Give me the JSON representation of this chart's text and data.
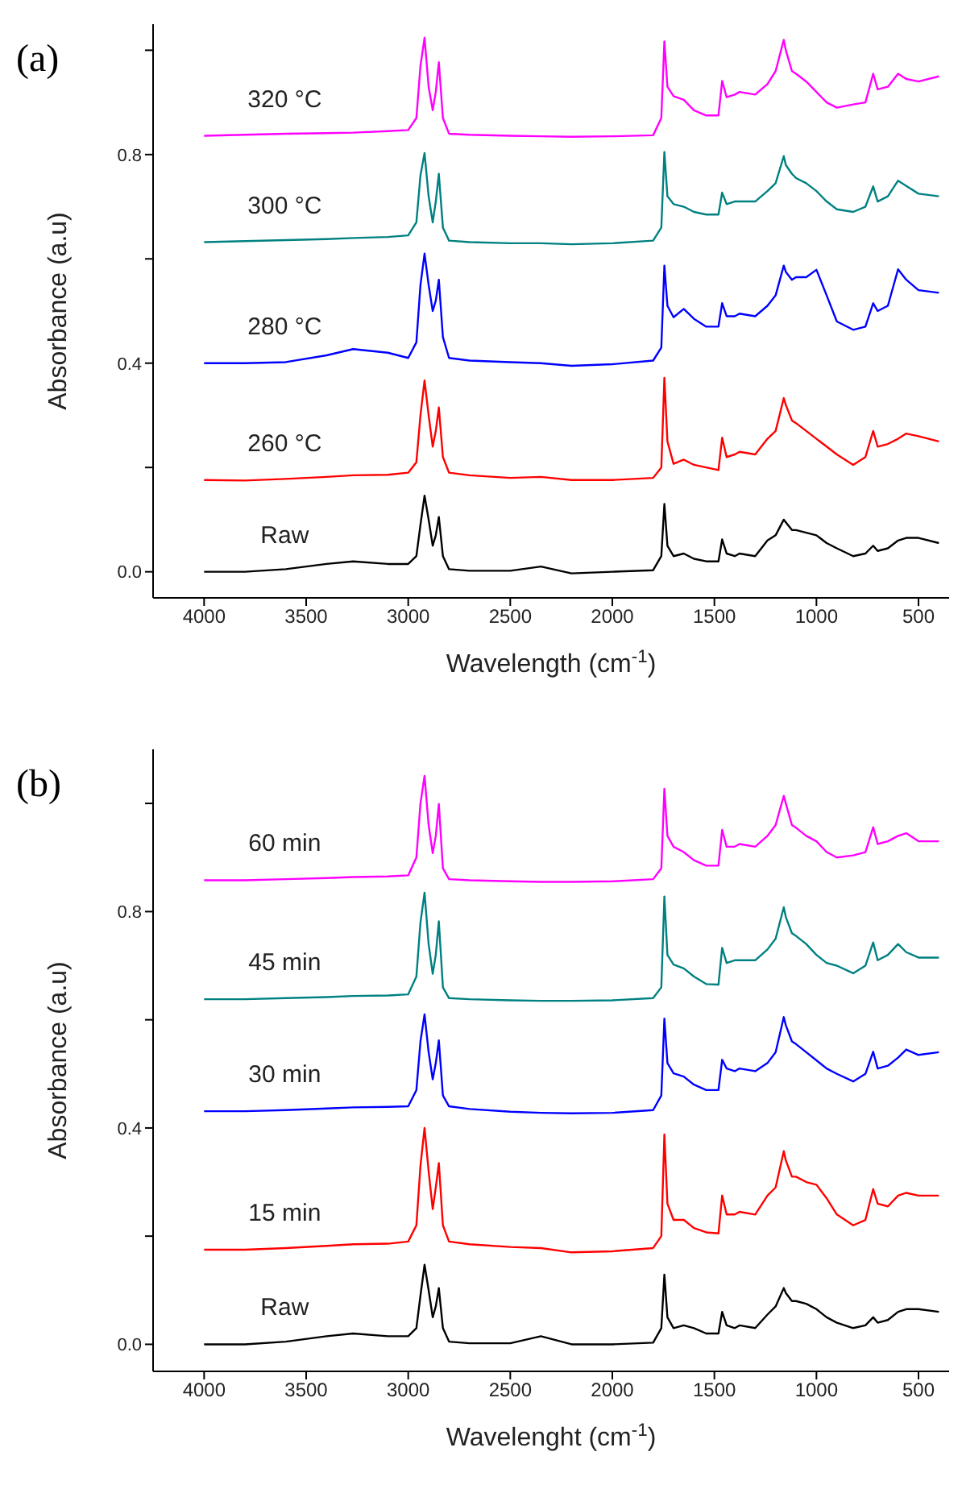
{
  "chart_data": [
    {
      "type": "line",
      "annotations": [
        "(a)"
      ],
      "xlabel": "Wavelength (cm$^{-1}$)",
      "ylabel": "Absorbance (a.u)",
      "marker": "none",
      "line_style": "solid",
      "xlim": [
        4250,
        350
      ],
      "xticks": [
        4000,
        3500,
        3000,
        2500,
        2000,
        1500,
        1000,
        500
      ],
      "ylim": [
        -0.05,
        1.05
      ],
      "yticks": [
        {
          "value": 0,
          "label": "0.0"
        },
        {
          "value": 0.2,
          "label": null
        },
        {
          "value": 0.4,
          "label": "0.4"
        },
        {
          "value": 0.6,
          "label": null
        },
        {
          "value": 0.8,
          "label": "0.8"
        },
        {
          "value": 1.0,
          "label": null
        }
      ],
      "x": [
        4000,
        3800,
        3600,
        3400,
        3270,
        3100,
        3000,
        2960,
        2940,
        2920,
        2900,
        2880,
        2865,
        2850,
        2830,
        2800,
        2700,
        2500,
        2350,
        2200,
        2000,
        1800,
        1760,
        1745,
        1730,
        1700,
        1650,
        1600,
        1540,
        1480,
        1462,
        1440,
        1400,
        1377,
        1300,
        1240,
        1200,
        1160,
        1150,
        1120,
        1100,
        1050,
        1000,
        950,
        900,
        820,
        760,
        722,
        700,
        650,
        600,
        560,
        500,
        400
      ],
      "series": [
        {
          "name": "Raw",
          "color": "#000000",
          "values": [
            0,
            0,
            0.005,
            0.015,
            0.02,
            0.015,
            0.015,
            0.03,
            0.09,
            0.146,
            0.1,
            0.05,
            0.07,
            0.105,
            0.03,
            0.005,
            0.002,
            0.002,
            0.01,
            -0.003,
            0,
            0.003,
            0.03,
            0.13,
            0.05,
            0.03,
            0.035,
            0.025,
            0.02,
            0.02,
            0.062,
            0.035,
            0.03,
            0.035,
            0.03,
            0.06,
            0.07,
            0.1,
            0.095,
            0.08,
            0.08,
            0.075,
            0.07,
            0.055,
            0.045,
            0.03,
            0.035,
            0.05,
            0.04,
            0.045,
            0.06,
            0.065,
            0.065,
            0.055
          ]
        },
        {
          "name": "260 °C",
          "color": "#ff0000",
          "values": [
            0.176,
            0.175,
            0.178,
            0.182,
            0.185,
            0.186,
            0.19,
            0.21,
            0.3,
            0.367,
            0.3,
            0.24,
            0.27,
            0.315,
            0.22,
            0.19,
            0.185,
            0.18,
            0.182,
            0.176,
            0.176,
            0.18,
            0.2,
            0.372,
            0.25,
            0.207,
            0.215,
            0.205,
            0.2,
            0.195,
            0.257,
            0.22,
            0.225,
            0.23,
            0.225,
            0.255,
            0.27,
            0.333,
            0.32,
            0.29,
            0.285,
            0.27,
            0.255,
            0.24,
            0.225,
            0.205,
            0.22,
            0.27,
            0.24,
            0.245,
            0.255,
            0.265,
            0.26,
            0.25
          ]
        },
        {
          "name": "280 °C",
          "color": "#0000ff",
          "values": [
            0.4,
            0.4,
            0.402,
            0.415,
            0.427,
            0.42,
            0.41,
            0.44,
            0.55,
            0.61,
            0.55,
            0.5,
            0.52,
            0.56,
            0.45,
            0.41,
            0.405,
            0.402,
            0.4,
            0.395,
            0.398,
            0.405,
            0.43,
            0.587,
            0.51,
            0.488,
            0.504,
            0.485,
            0.47,
            0.47,
            0.515,
            0.49,
            0.49,
            0.495,
            0.49,
            0.51,
            0.53,
            0.587,
            0.575,
            0.56,
            0.565,
            0.565,
            0.579,
            0.53,
            0.48,
            0.464,
            0.47,
            0.515,
            0.5,
            0.51,
            0.58,
            0.56,
            0.54,
            0.535
          ]
        },
        {
          "name": "300 °C",
          "color": "#008080",
          "values": [
            0.632,
            0.634,
            0.636,
            0.638,
            0.64,
            0.642,
            0.645,
            0.67,
            0.76,
            0.803,
            0.72,
            0.67,
            0.71,
            0.763,
            0.66,
            0.635,
            0.632,
            0.63,
            0.63,
            0.628,
            0.63,
            0.635,
            0.66,
            0.805,
            0.72,
            0.705,
            0.7,
            0.69,
            0.685,
            0.685,
            0.727,
            0.705,
            0.71,
            0.71,
            0.71,
            0.73,
            0.745,
            0.797,
            0.78,
            0.763,
            0.755,
            0.745,
            0.73,
            0.71,
            0.695,
            0.69,
            0.7,
            0.739,
            0.71,
            0.72,
            0.75,
            0.74,
            0.725,
            0.72
          ]
        },
        {
          "name": "320 °C",
          "color": "#ff00ff",
          "values": [
            0.836,
            0.838,
            0.84,
            0.841,
            0.842,
            0.845,
            0.847,
            0.87,
            0.97,
            1.024,
            0.93,
            0.885,
            0.92,
            0.977,
            0.87,
            0.84,
            0.838,
            0.836,
            0.835,
            0.834,
            0.835,
            0.837,
            0.87,
            1.017,
            0.93,
            0.912,
            0.905,
            0.885,
            0.875,
            0.875,
            0.941,
            0.91,
            0.915,
            0.92,
            0.915,
            0.935,
            0.96,
            1.02,
            1.0,
            0.96,
            0.955,
            0.94,
            0.92,
            0.9,
            0.89,
            0.896,
            0.9,
            0.955,
            0.925,
            0.93,
            0.955,
            0.945,
            0.94,
            0.95
          ]
        }
      ]
    },
    {
      "type": "line",
      "annotations": [
        "(b)"
      ],
      "xlabel": "Wavelenght (cm$^{-1}$)",
      "ylabel": "Absorbance (a.u)",
      "marker": "none",
      "line_style": "solid",
      "xlim": [
        4250,
        350
      ],
      "xticks": [
        4000,
        3500,
        3000,
        2500,
        2000,
        1500,
        1000,
        500
      ],
      "ylim": [
        -0.05,
        1.1
      ],
      "yticks": [
        {
          "value": 0,
          "label": "0.0"
        },
        {
          "value": 0.2,
          "label": null
        },
        {
          "value": 0.4,
          "label": "0.4"
        },
        {
          "value": 0.6,
          "label": null
        },
        {
          "value": 0.8,
          "label": "0.8"
        },
        {
          "value": 1.0,
          "label": null
        }
      ],
      "x": [
        4000,
        3800,
        3600,
        3400,
        3270,
        3100,
        3000,
        2960,
        2940,
        2920,
        2900,
        2880,
        2865,
        2850,
        2830,
        2800,
        2700,
        2500,
        2350,
        2200,
        2000,
        1800,
        1760,
        1745,
        1730,
        1700,
        1650,
        1600,
        1540,
        1480,
        1462,
        1440,
        1400,
        1377,
        1300,
        1240,
        1200,
        1160,
        1150,
        1120,
        1100,
        1050,
        1000,
        950,
        900,
        820,
        760,
        722,
        700,
        650,
        600,
        560,
        500,
        400
      ],
      "series": [
        {
          "name": "Raw",
          "color": "#000000",
          "values": [
            0,
            0,
            0.005,
            0.015,
            0.02,
            0.015,
            0.015,
            0.03,
            0.09,
            0.147,
            0.1,
            0.05,
            0.07,
            0.104,
            0.03,
            0.005,
            0.002,
            0.002,
            0.015,
            0,
            0,
            0.003,
            0.03,
            0.129,
            0.05,
            0.03,
            0.035,
            0.03,
            0.02,
            0.02,
            0.06,
            0.035,
            0.03,
            0.035,
            0.03,
            0.055,
            0.07,
            0.104,
            0.095,
            0.08,
            0.08,
            0.075,
            0.065,
            0.05,
            0.04,
            0.03,
            0.035,
            0.05,
            0.04,
            0.045,
            0.06,
            0.065,
            0.065,
            0.06
          ]
        },
        {
          "name": "15 min",
          "color": "#ff0000",
          "values": [
            0.175,
            0.175,
            0.178,
            0.182,
            0.185,
            0.186,
            0.19,
            0.22,
            0.33,
            0.4,
            0.32,
            0.25,
            0.29,
            0.335,
            0.22,
            0.19,
            0.185,
            0.18,
            0.178,
            0.17,
            0.172,
            0.178,
            0.2,
            0.388,
            0.26,
            0.23,
            0.23,
            0.215,
            0.207,
            0.205,
            0.275,
            0.24,
            0.24,
            0.245,
            0.24,
            0.275,
            0.29,
            0.357,
            0.34,
            0.31,
            0.31,
            0.3,
            0.295,
            0.27,
            0.24,
            0.22,
            0.23,
            0.287,
            0.26,
            0.255,
            0.275,
            0.28,
            0.275,
            0.275
          ]
        },
        {
          "name": "30 min",
          "color": "#0000ff",
          "values": [
            0.431,
            0.431,
            0.433,
            0.436,
            0.438,
            0.439,
            0.44,
            0.47,
            0.56,
            0.61,
            0.54,
            0.49,
            0.52,
            0.562,
            0.46,
            0.44,
            0.435,
            0.43,
            0.428,
            0.427,
            0.428,
            0.433,
            0.46,
            0.602,
            0.52,
            0.501,
            0.495,
            0.48,
            0.47,
            0.47,
            0.526,
            0.51,
            0.505,
            0.51,
            0.505,
            0.52,
            0.54,
            0.605,
            0.59,
            0.56,
            0.555,
            0.54,
            0.525,
            0.51,
            0.5,
            0.486,
            0.5,
            0.541,
            0.51,
            0.515,
            0.53,
            0.545,
            0.535,
            0.54
          ]
        },
        {
          "name": "45 min",
          "color": "#008080",
          "values": [
            0.638,
            0.638,
            0.64,
            0.642,
            0.644,
            0.645,
            0.647,
            0.68,
            0.78,
            0.835,
            0.74,
            0.685,
            0.72,
            0.782,
            0.66,
            0.64,
            0.638,
            0.636,
            0.635,
            0.635,
            0.636,
            0.64,
            0.66,
            0.828,
            0.72,
            0.702,
            0.695,
            0.68,
            0.666,
            0.665,
            0.733,
            0.705,
            0.71,
            0.71,
            0.71,
            0.73,
            0.75,
            0.808,
            0.79,
            0.76,
            0.755,
            0.74,
            0.72,
            0.705,
            0.7,
            0.686,
            0.7,
            0.743,
            0.71,
            0.72,
            0.74,
            0.725,
            0.715,
            0.715
          ]
        },
        {
          "name": "60 min",
          "color": "#ff00ff",
          "values": [
            0.858,
            0.858,
            0.86,
            0.862,
            0.864,
            0.865,
            0.867,
            0.9,
            1.0,
            1.051,
            0.96,
            0.908,
            0.94,
            0.999,
            0.88,
            0.86,
            0.858,
            0.856,
            0.855,
            0.855,
            0.856,
            0.86,
            0.88,
            1.027,
            0.94,
            0.92,
            0.91,
            0.895,
            0.885,
            0.885,
            0.951,
            0.92,
            0.92,
            0.925,
            0.92,
            0.94,
            0.96,
            1.014,
            1.0,
            0.96,
            0.955,
            0.94,
            0.93,
            0.91,
            0.9,
            0.904,
            0.91,
            0.956,
            0.925,
            0.93,
            0.94,
            0.945,
            0.93,
            0.93
          ]
        }
      ]
    }
  ]
}
